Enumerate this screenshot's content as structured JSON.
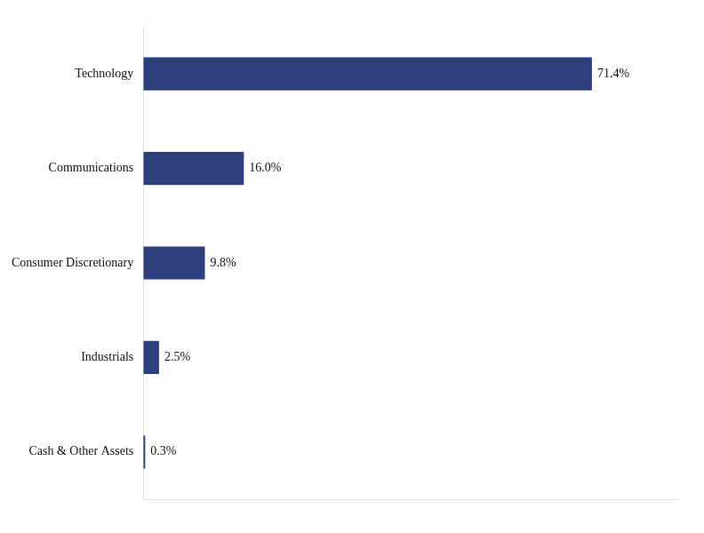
{
  "chart_data": {
    "type": "bar",
    "orientation": "horizontal",
    "categories": [
      "Technology",
      "Communications",
      "Consumer Discretionary",
      "Industrials",
      "Cash & Other Assets"
    ],
    "values": [
      71.4,
      16.0,
      9.8,
      2.5,
      0.3
    ],
    "value_labels": [
      "71.4%",
      "16.0%",
      "9.8%",
      "2.5%",
      "0.3%"
    ],
    "data_labels": true,
    "color": "#2d3f7c",
    "xlim": [
      0,
      85
    ],
    "grid": false,
    "tick_labels": "y"
  }
}
